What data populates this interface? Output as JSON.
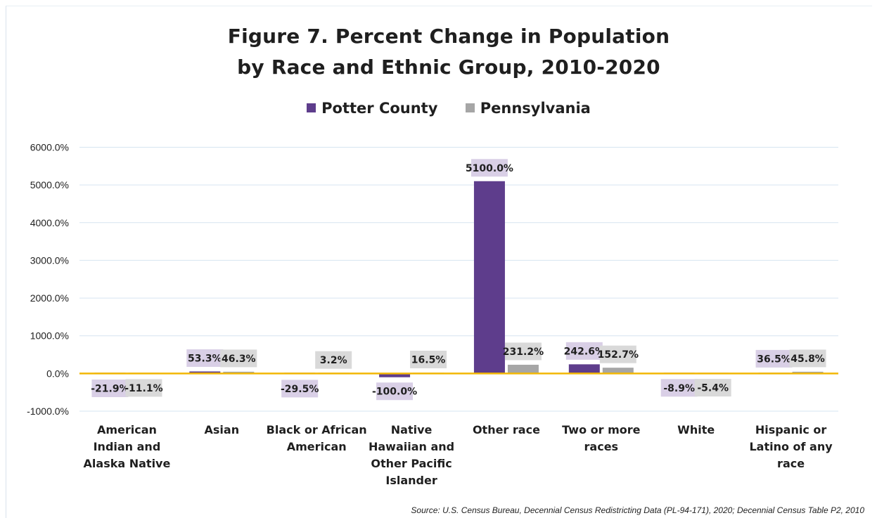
{
  "chart_data": {
    "type": "bar",
    "title_lines": [
      "Figure 7. Percent Change in Population",
      "by Race and Ethnic Group, 2010-2020"
    ],
    "xlabel": "",
    "ylabel": "",
    "categories": [
      "American Indian and Alaska Native",
      "Asian",
      "Black or African American",
      "Native Hawaiian and Other Pacific Islander",
      "Other race",
      "Two or more races",
      "White",
      "Hispanic or Latino of any race"
    ],
    "category_lines": [
      [
        "American",
        "Indian and",
        "Alaska Native"
      ],
      [
        "Asian"
      ],
      [
        "Black or African",
        "American"
      ],
      [
        "Native",
        "Hawaiian and",
        "Other Pacific",
        "Islander"
      ],
      [
        "Other race"
      ],
      [
        "Two or more",
        "races"
      ],
      [
        "White"
      ],
      [
        "Hispanic or",
        "Latino of any",
        "race"
      ]
    ],
    "series": [
      {
        "name": "Potter County",
        "color": "#5e3d8c",
        "values": [
          -21.9,
          53.3,
          -29.5,
          -100.0,
          5100.0,
          242.6,
          -8.9,
          36.5
        ],
        "labels": [
          "-21.9%",
          "53.3%",
          "-29.5%",
          "-100.0%",
          "5100.0%",
          "242.6%",
          "-8.9%",
          "36.5%"
        ]
      },
      {
        "name": "Pennsylvania",
        "color": "#a6a6a6",
        "values": [
          -11.1,
          46.3,
          3.2,
          16.5,
          231.2,
          152.7,
          -5.4,
          45.8
        ],
        "labels": [
          "-11.1%",
          "46.3%",
          "3.2%",
          "16.5%",
          "231.2%",
          "152.7%",
          "-5.4%",
          "45.8%"
        ]
      }
    ],
    "ylim": [
      -1000,
      6000
    ],
    "yticks": [
      -1000,
      0,
      1000,
      2000,
      3000,
      4000,
      5000,
      6000
    ],
    "ytick_labels": [
      "-1000.0%",
      "0.0%",
      "1000.0%",
      "2000.0%",
      "3000.0%",
      "4000.0%",
      "5000.0%",
      "6000.0%"
    ],
    "grid": true,
    "legend_position": "top",
    "zero_line_color": "#f2b705"
  },
  "source_text": "Source: U.S. Census Bureau, Decennial Census Redistricting Data (PL-94-171), 2020; Decennial Census Table P2, 2010"
}
